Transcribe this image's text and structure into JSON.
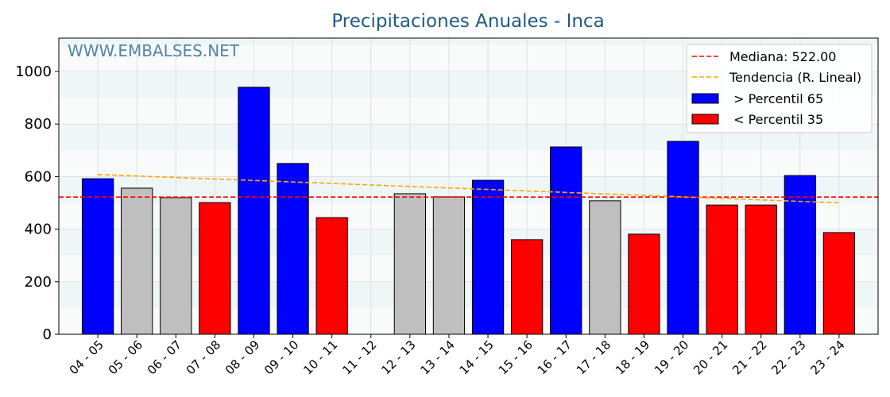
{
  "chart_data": {
    "type": "bar",
    "title": "Precipitaciones Anuales - Inca",
    "watermark": "WWW.EMBALSES.NET",
    "categories": [
      "04 - 05",
      "05 - 06",
      "06 - 07",
      "07 - 08",
      "08 - 09",
      "09 - 10",
      "10 - 11",
      "11 - 12",
      "12 - 13",
      "13 - 14",
      "14 - 15",
      "15 - 16",
      "16 - 17",
      "17 - 18",
      "18 - 19",
      "19 - 20",
      "20 - 21",
      "21 - 22",
      "22 - 23",
      "23 - 24"
    ],
    "values": [
      592,
      556,
      520,
      501,
      940,
      650,
      444,
      0,
      535,
      523,
      586,
      360,
      713,
      508,
      381,
      734,
      492,
      492,
      604,
      387
    ],
    "classes": [
      "high",
      "mid",
      "mid",
      "low",
      "high",
      "high",
      "low",
      "mid",
      "mid",
      "mid",
      "high",
      "low",
      "high",
      "mid",
      "low",
      "high",
      "low",
      "low",
      "high",
      "low"
    ],
    "colors": {
      "high": "#0000ff",
      "low": "#ff0000",
      "mid": "#bfbfbf",
      "median": "#ff0000",
      "trend": "#ffa500",
      "title": "#1f5a80"
    },
    "median": 522.0,
    "trend": [
      608,
      500
    ],
    "ylim": [
      0,
      1127
    ],
    "yticks": [
      0,
      200,
      400,
      600,
      800,
      1000
    ],
    "legend": {
      "position": "top-right",
      "items": [
        "Mediana: 522.00",
        "Tendencia (R. Lineal)",
        " > Percentil 65",
        " < Percentil 35"
      ]
    }
  }
}
